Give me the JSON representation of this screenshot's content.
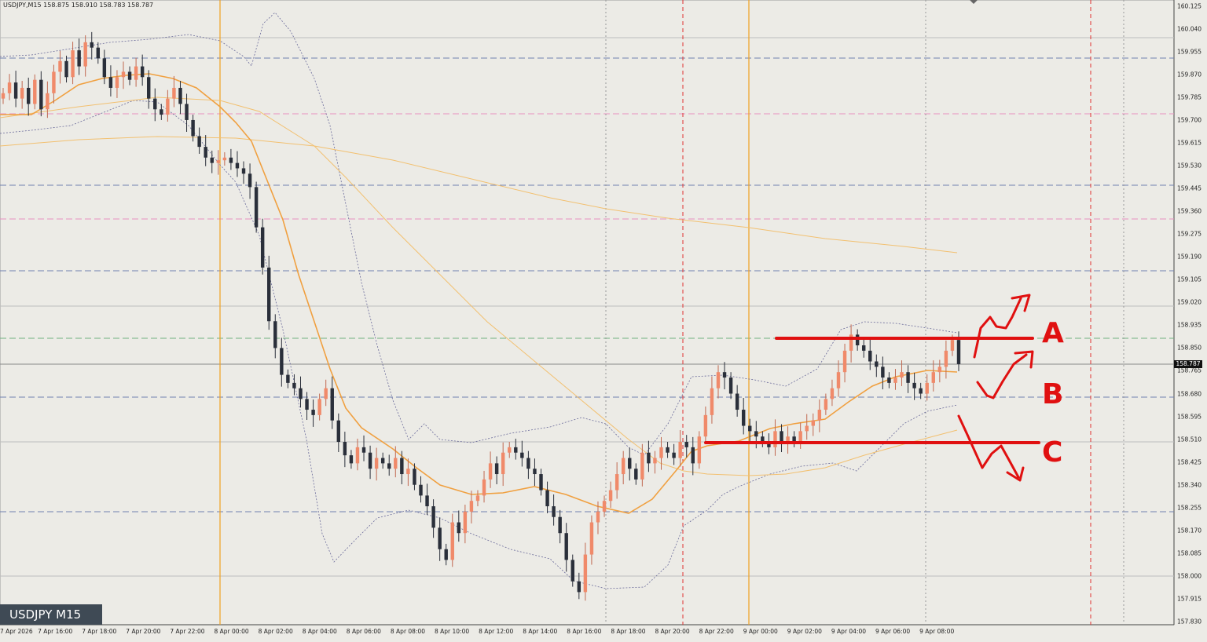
{
  "header": {
    "symbol": "USDJPY,M15",
    "ohlc": "158.875 158.910 158.783 158.787"
  },
  "badge": {
    "label": "USDJPY M15"
  },
  "current_price": "158.787",
  "colors": {
    "background": "#ecebe6",
    "bull": "#f08a6a",
    "bear": "#2a2f3a",
    "ema_fast": "#f0a040",
    "ma_slow": "#f2c070",
    "bollinger": "#6a6a9a",
    "session_line": "#f0a020",
    "day_line": "#e03030",
    "annotation": "#e01010"
  },
  "chart_data": {
    "type": "candlestick",
    "symbol": "USDJPY",
    "timeframe": "M15",
    "ylim": [
      157.83,
      160.13
    ],
    "y_ticks": [
      "160.125",
      "160.040",
      "159.955",
      "159.870",
      "159.785",
      "159.700",
      "159.615",
      "159.530",
      "159.445",
      "159.360",
      "159.275",
      "159.190",
      "159.105",
      "159.020",
      "158.935",
      "158.850",
      "158.765",
      "158.680",
      "158.595",
      "158.510",
      "158.425",
      "158.340",
      "158.255",
      "158.170",
      "158.085",
      "158.000",
      "157.915",
      "157.830"
    ],
    "x_ticks": [
      "7 Apr 2026",
      "7 Apr 16:00",
      "7 Apr 18:00",
      "7 Apr 20:00",
      "7 Apr 22:00",
      "8 Apr 00:00",
      "8 Apr 02:00",
      "8 Apr 04:00",
      "8 Apr 06:00",
      "8 Apr 08:00",
      "8 Apr 10:00",
      "8 Apr 12:00",
      "8 Apr 14:00",
      "8 Apr 16:00",
      "8 Apr 18:00",
      "8 Apr 20:00",
      "8 Apr 22:00",
      "9 Apr 00:00",
      "9 Apr 02:00",
      "9 Apr 04:00",
      "9 Apr 06:00",
      "9 Apr 08:00"
    ],
    "closes": [
      159.8,
      159.84,
      159.78,
      159.82,
      159.76,
      159.85,
      159.74,
      159.8,
      159.88,
      159.92,
      159.86,
      159.96,
      159.9,
      159.99,
      159.97,
      159.93,
      159.86,
      159.82,
      159.86,
      159.88,
      159.85,
      159.9,
      159.86,
      159.78,
      159.74,
      159.72,
      159.78,
      159.82,
      159.76,
      159.7,
      159.64,
      159.6,
      159.56,
      159.54,
      159.55,
      159.56,
      159.54,
      159.52,
      159.5,
      159.45,
      159.3,
      159.15,
      158.95,
      158.85,
      158.75,
      158.72,
      158.7,
      158.66,
      158.62,
      158.6,
      158.66,
      158.7,
      158.58,
      158.5,
      158.45,
      158.42,
      158.48,
      158.46,
      158.4,
      158.44,
      158.42,
      158.4,
      158.44,
      158.38,
      158.4,
      158.34,
      158.3,
      158.26,
      158.18,
      158.1,
      158.06,
      158.2,
      158.16,
      158.24,
      158.28,
      158.3,
      158.36,
      158.42,
      158.38,
      158.46,
      158.48,
      158.46,
      158.44,
      158.4,
      158.38,
      158.32,
      158.26,
      158.22,
      158.16,
      158.06,
      157.98,
      157.94,
      158.08,
      158.2,
      158.24,
      158.28,
      158.32,
      158.38,
      158.44,
      158.4,
      158.36,
      158.46,
      158.42,
      158.44,
      158.48,
      158.46,
      158.44,
      158.5,
      158.48,
      158.42,
      158.52,
      158.6,
      158.7,
      158.76,
      158.74,
      158.68,
      158.62,
      158.56,
      158.54,
      158.52,
      158.5,
      158.48,
      158.54,
      158.5,
      158.52,
      158.5,
      158.54,
      158.56,
      158.58,
      158.62,
      158.66,
      158.7,
      158.76,
      158.84,
      158.9,
      158.86,
      158.84,
      158.8,
      158.78,
      158.74,
      158.72,
      158.74,
      158.76,
      158.72,
      158.7,
      158.68,
      158.72,
      158.76,
      158.78,
      158.84,
      158.88,
      158.79
    ],
    "indicators": [
      "Bollinger Bands",
      "EMA fast",
      "MA slow"
    ]
  }
}
